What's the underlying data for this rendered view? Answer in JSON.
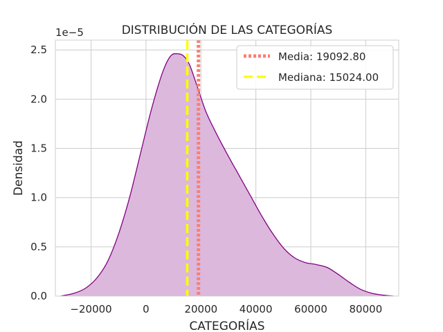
{
  "chart_data": {
    "type": "area",
    "title": "DISTRIBUCIÓN DE LAS CATEGORÍAS",
    "xlabel": "CATEGORÍAS",
    "ylabel": "Densidad",
    "y_scale_label": "1e−5",
    "xlim": [
      -33000,
      92000
    ],
    "ylim": [
      0,
      2.6
    ],
    "x_ticks": [
      -20000,
      0,
      20000,
      40000,
      60000,
      80000
    ],
    "x_tick_labels": [
      "−20000",
      "0",
      "20000",
      "40000",
      "60000",
      "80000"
    ],
    "y_ticks": [
      0.0,
      0.5,
      1.0,
      1.5,
      2.0,
      2.5
    ],
    "y_tick_labels": [
      "0.0",
      "0.5",
      "1.0",
      "1.5",
      "2.0",
      "2.5"
    ],
    "grid": true,
    "legend_position": "top-right",
    "series": [
      {
        "x": [
          -31000,
          -26000,
          -22000,
          -18000,
          -14000,
          -10000,
          -6000,
          -2000,
          2000,
          6000,
          9000,
          12000,
          14000,
          16000,
          19000,
          22000,
          26000,
          30000,
          34000,
          38000,
          42000,
          46000,
          50000,
          54000,
          58000,
          62000,
          66000,
          70000,
          74000,
          78000,
          82000,
          86000,
          90000
        ],
        "y": [
          0.0,
          0.03,
          0.08,
          0.18,
          0.35,
          0.63,
          1.0,
          1.45,
          1.9,
          2.27,
          2.44,
          2.46,
          2.43,
          2.34,
          2.1,
          1.86,
          1.63,
          1.42,
          1.22,
          1.02,
          0.82,
          0.64,
          0.49,
          0.39,
          0.34,
          0.32,
          0.29,
          0.22,
          0.14,
          0.07,
          0.03,
          0.01,
          0.0
        ],
        "color": "#800080",
        "fill_color": "#dcb8dc"
      }
    ],
    "reference_lines": [
      {
        "name": "Media: 19092.80",
        "x": 19092.8,
        "color": "#fa8072",
        "style": "dotted"
      },
      {
        "name": "Mediana: 15024.00",
        "x": 15024.0,
        "color": "#ffff00",
        "style": "dashed"
      }
    ]
  }
}
